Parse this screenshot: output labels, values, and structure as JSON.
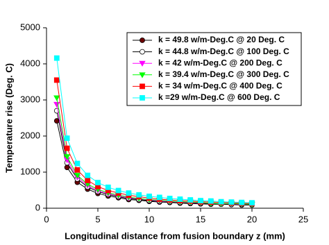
{
  "chart_data": {
    "type": "line",
    "xlabel": "Longitudinal distance from fusion boundary z (mm)",
    "ylabel": "Temperature rise (Deg. C)",
    "x": [
      1,
      2,
      3,
      4,
      5,
      6,
      7,
      8,
      9,
      10,
      11,
      12,
      13,
      14,
      15,
      16,
      17,
      18,
      19,
      20
    ],
    "series": [
      {
        "name": "k = 49.8 w/m-Deg.C @ 20 Deg. C",
        "color": "#6b0000",
        "line_color": "#000000",
        "marker": "circle",
        "values": [
          2420,
          1130,
          720,
          530,
          410,
          340,
          290,
          240,
          220,
          190,
          170,
          160,
          140,
          130,
          120,
          110,
          110,
          100,
          90,
          90
        ]
      },
      {
        "name": "k = 44.8 w/m-Deg.C @ 100 Deg. C",
        "color": "#ffffff",
        "line_color": "#000000",
        "marker": "circle",
        "values": [
          2700,
          1260,
          810,
          590,
          460,
          380,
          320,
          270,
          240,
          210,
          190,
          180,
          160,
          150,
          140,
          130,
          120,
          110,
          110,
          100
        ]
      },
      {
        "name": "k = 42 w/m-Deg.C @ 200 Deg. C",
        "color": "#ff00ff",
        "line_color": "#ff00ff",
        "marker": "triangle-down",
        "values": [
          2880,
          1340,
          860,
          630,
          490,
          400,
          340,
          290,
          260,
          230,
          200,
          190,
          170,
          160,
          150,
          140,
          130,
          120,
          110,
          110
        ]
      },
      {
        "name": "k = 39.4 w/m-Deg.C @ 300 Deg. C",
        "color": "#00ff00",
        "line_color": "#00ff00",
        "marker": "triangle-down",
        "values": [
          3060,
          1430,
          910,
          670,
          520,
          430,
          360,
          310,
          270,
          240,
          220,
          200,
          180,
          170,
          160,
          140,
          130,
          130,
          120,
          110
        ]
      },
      {
        "name": "k = 34 w/m-Deg.C @ 400 Deg. C",
        "color": "#ff0000",
        "line_color": "#ff0000",
        "marker": "square",
        "values": [
          3550,
          1660,
          1060,
          770,
          600,
          490,
          420,
          360,
          320,
          280,
          250,
          230,
          210,
          200,
          180,
          170,
          160,
          150,
          140,
          130
        ]
      },
      {
        "name": "k =29 w/m-Deg.C @ 600 Deg. C",
        "color": "#00ffff",
        "line_color": "#00ffff",
        "marker": "square",
        "values": [
          4160,
          1940,
          1240,
          910,
          710,
          580,
          490,
          420,
          370,
          330,
          300,
          270,
          250,
          230,
          210,
          200,
          180,
          170,
          160,
          150
        ]
      }
    ],
    "xlim": [
      0,
      25
    ],
    "xticks": [
      0,
      5,
      10,
      15,
      20,
      25
    ],
    "ylim": [
      0,
      5000
    ],
    "yticks": [
      0,
      1000,
      2000,
      3000,
      4000,
      5000
    ],
    "legend": "upper right"
  }
}
